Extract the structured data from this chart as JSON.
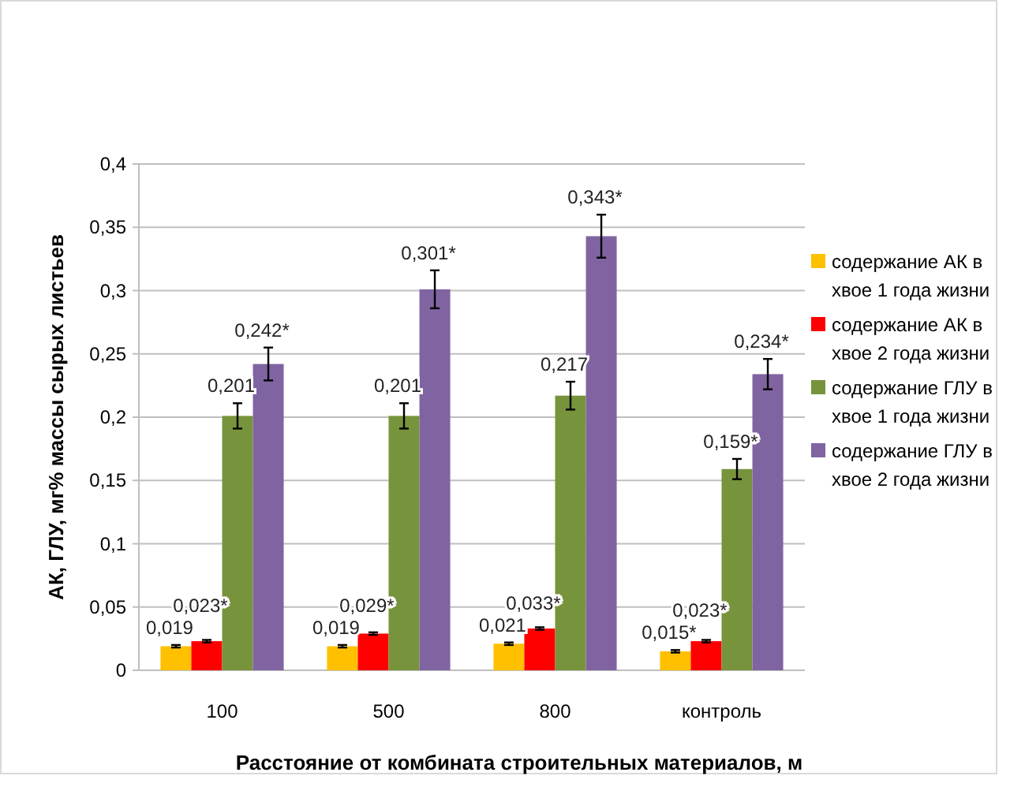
{
  "chart_data": {
    "type": "bar",
    "xlabel": "Расстояние от комбината строительных материалов, м",
    "ylabel": "АК, ГЛУ, мг% массы сырых листьев",
    "categories": [
      "100",
      "500",
      "800",
      "контроль"
    ],
    "series": [
      {
        "name": "содержание АК в хвое 1 года жизни",
        "color": "#ffc000",
        "values": [
          0.019,
          0.019,
          0.021,
          0.015
        ],
        "errors": [
          0.001,
          0.001,
          0.001,
          0.001
        ],
        "value_labels": [
          "0,019",
          "0,019",
          "0,021",
          "0,015*"
        ]
      },
      {
        "name": "содержание АК в хвое 2 года жизни",
        "color": "#ff0000",
        "values": [
          0.023,
          0.029,
          0.033,
          0.023
        ],
        "errors": [
          0.001,
          0.001,
          0.001,
          0.001
        ],
        "value_labels": [
          "0,023*",
          "0,029*",
          "0,033*",
          "0,023*"
        ]
      },
      {
        "name": "содержание ГЛУ в хвое 1 года жизни",
        "color": "#77933c",
        "values": [
          0.201,
          0.201,
          0.217,
          0.159
        ],
        "errors": [
          0.01,
          0.01,
          0.011,
          0.008
        ],
        "value_labels": [
          "0,201",
          "0,201",
          "0,217",
          "0,159*"
        ]
      },
      {
        "name": "содержание ГЛУ в хвое 2 года жизни",
        "color": "#8064a2",
        "values": [
          0.242,
          0.301,
          0.343,
          0.234
        ],
        "errors": [
          0.013,
          0.015,
          0.017,
          0.012
        ],
        "value_labels": [
          "0,242*",
          "0,301*",
          "0,343*",
          "0,234*"
        ]
      }
    ],
    "ylim": [
      0,
      0.4
    ],
    "yticks": [
      0,
      {
        "value": 0.05,
        "label": "0,05"
      },
      {
        "value": 0.1,
        "label": "0,1"
      },
      {
        "value": 0.15,
        "label": "0,15"
      },
      {
        "value": 0.2,
        "label": "0,2"
      },
      {
        "value": 0.25,
        "label": "0,25"
      },
      {
        "value": 0.3,
        "label": "0,3"
      },
      {
        "value": 0.35,
        "label": "0,35"
      },
      {
        "value": 0.4,
        "label": "0,4"
      }
    ],
    "grid": "y",
    "legend": "right"
  }
}
